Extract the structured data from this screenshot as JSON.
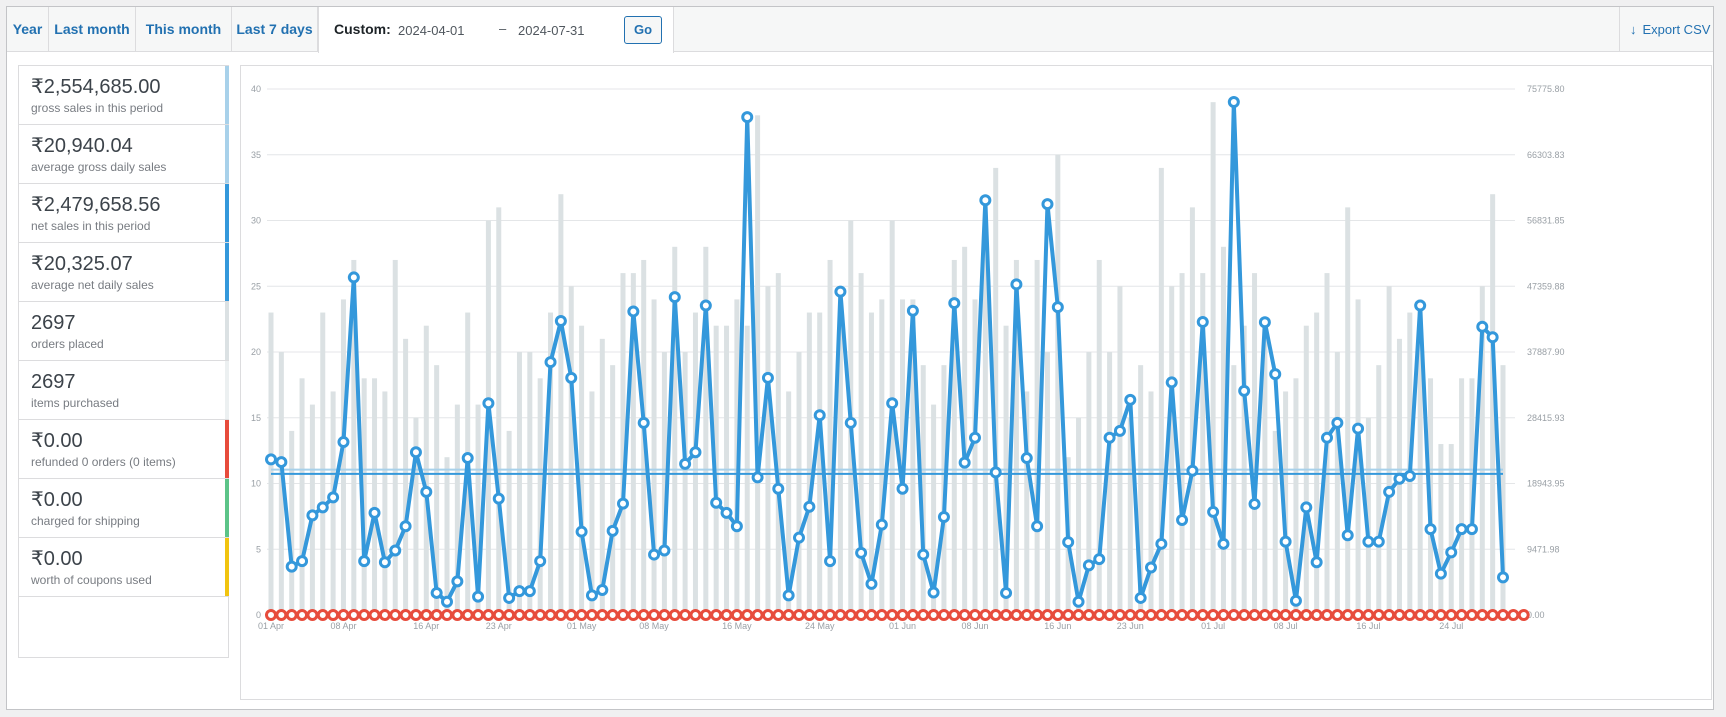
{
  "ranges": [
    {
      "label": "Year"
    },
    {
      "label": "Last month"
    },
    {
      "label": "This month"
    },
    {
      "label": "Last 7 days"
    }
  ],
  "custom": {
    "label": "Custom:",
    "start": "2024-04-01",
    "separator": "–",
    "end": "2024-07-31",
    "go_label": "Go"
  },
  "export": {
    "label": "Export CSV",
    "icon": "download-arrow-icon"
  },
  "legend": [
    {
      "value": "₹2,554,685.00",
      "label": "gross sales in this period",
      "color": "#a8d1ea"
    },
    {
      "value": "₹20,940.04",
      "label": "average gross daily sales",
      "color": "#a8d1ea"
    },
    {
      "value": "₹2,479,658.56",
      "label": "net sales in this period",
      "color": "#3498db"
    },
    {
      "value": "₹20,325.07",
      "label": "average net daily sales",
      "color": "#3498db"
    },
    {
      "value": "2697",
      "label": "orders placed",
      "color": "#dbe1e3"
    },
    {
      "value": "2697",
      "label": "items purchased",
      "color": "#ecf0f1"
    },
    {
      "value": "₹0.00",
      "label": "refunded 0 orders (0 items)",
      "color": "#e74c3c"
    },
    {
      "value": "₹0.00",
      "label": "charged for shipping",
      "color": "#5cc488"
    },
    {
      "value": "₹0.00",
      "label": "worth of coupons used",
      "color": "#f1c40f"
    }
  ],
  "chart_data": {
    "type": "bar+line",
    "x_tick_labels": [
      "01 Apr",
      "08 Apr",
      "16 Apr",
      "23 Apr",
      "01 May",
      "08 May",
      "16 May",
      "24 May",
      "01 Jun",
      "08 Jun",
      "16 Jun",
      "23 Jun",
      "01 Jul",
      "08 Jul",
      "16 Jul",
      "24 Jul"
    ],
    "left_axis": {
      "ticks": [
        "0",
        "5",
        "10",
        "15",
        "20",
        "25",
        "30",
        "35",
        "40"
      ],
      "ylim": [
        0,
        40
      ]
    },
    "right_axis": {
      "ticks": [
        "0.00",
        "9471.98",
        "18943.95",
        "28415.93",
        "37887.90",
        "47359.88",
        "56831.85",
        "66303.83",
        "75775.80"
      ],
      "ylim": [
        0,
        75775.8
      ]
    },
    "grid": true,
    "series": [
      {
        "kind": "bar",
        "axis": "left",
        "color": "#dbe1e3",
        "values": [
          23,
          20,
          14,
          18,
          16,
          23,
          17,
          24,
          27,
          18,
          18,
          17,
          27,
          21,
          15,
          22,
          19,
          12,
          16,
          23,
          16,
          30,
          31,
          14,
          20,
          20,
          18,
          23,
          32,
          25,
          22,
          17,
          21,
          19,
          26,
          26,
          27,
          24,
          20,
          28,
          20,
          23,
          28,
          22,
          22,
          24,
          22,
          38,
          25,
          26,
          17,
          20,
          23,
          23,
          27,
          23,
          30,
          26,
          23,
          24,
          30,
          24,
          24,
          19,
          16,
          19,
          27,
          28,
          24,
          29,
          34,
          22,
          27,
          17,
          27,
          20,
          35,
          12,
          15,
          20,
          27,
          20,
          25,
          15,
          19,
          17,
          34,
          25,
          26,
          31,
          26,
          39,
          28,
          19,
          22,
          26,
          22,
          14,
          17,
          18,
          22,
          23,
          26,
          20,
          31,
          24,
          15,
          19,
          25,
          21,
          23,
          24,
          18,
          13,
          13,
          18,
          18,
          25,
          32,
          19
        ]
      },
      {
        "kind": "line",
        "axis": "right",
        "color": "#3498db",
        "values": [
          22427,
          22032,
          6971,
          7767,
          14349,
          15507,
          16938,
          24914,
          48630,
          7767,
          14714,
          7596,
          9287,
          12793,
          23441,
          17735,
          3178,
          1915,
          4849,
          22609,
          2650,
          30512,
          16770,
          2457,
          3442,
          3442,
          7754,
          36427,
          42352,
          34164,
          12003,
          2820,
          3608,
          12123,
          16048,
          43731,
          27674,
          8706,
          9287,
          45796,
          21779,
          23441,
          44588,
          16164,
          14714,
          12793,
          71720,
          19829,
          34164,
          18183,
          2820,
          11138,
          15602,
          28780,
          7767,
          46581,
          27674,
          8952,
          4478,
          13025,
          30512,
          18183,
          43823,
          8706,
          3233,
          14121,
          44924,
          21952,
          25537,
          59750,
          20541,
          3178,
          47638,
          22609,
          12793,
          59193,
          44359,
          10495,
          1915,
          7154,
          8057,
          25537,
          26524,
          31000,
          2457,
          6840,
          10255,
          33516,
          13683,
          20782,
          42218,
          14862,
          10255,
          73909,
          32293,
          15999,
          42168,
          34699,
          10570,
          2055,
          15507,
          7596,
          25537,
          27674,
          11488,
          26855,
          10570,
          10570,
          17735,
          19632,
          20032,
          44588,
          12366,
          5953,
          9018,
          12366,
          12366,
          41526,
          40015,
          5416
        ]
      },
      {
        "kind": "line",
        "axis": "left",
        "color": "#e74c3c",
        "values": [
          0,
          0,
          0,
          0,
          0,
          0,
          0,
          0,
          0,
          0,
          0,
          0,
          0,
          0,
          0,
          0,
          0,
          0,
          0,
          0,
          0,
          0,
          0,
          0,
          0,
          0,
          0,
          0,
          0,
          0,
          0,
          0,
          0,
          0,
          0,
          0,
          0,
          0,
          0,
          0,
          0,
          0,
          0,
          0,
          0,
          0,
          0,
          0,
          0,
          0,
          0,
          0,
          0,
          0,
          0,
          0,
          0,
          0,
          0,
          0,
          0,
          0,
          0,
          0,
          0,
          0,
          0,
          0,
          0,
          0,
          0,
          0,
          0,
          0,
          0,
          0,
          0,
          0,
          0,
          0,
          0,
          0,
          0,
          0,
          0,
          0,
          0,
          0,
          0,
          0,
          0,
          0,
          0,
          0,
          0,
          0,
          0,
          0,
          0,
          0,
          0,
          0,
          0,
          0,
          0,
          0,
          0,
          0,
          0,
          0,
          0,
          0,
          0,
          0,
          0,
          0,
          0,
          0,
          0,
          0,
          0,
          0
        ]
      },
      {
        "kind": "average",
        "axis": "right",
        "color": "#a8d1ea",
        "values": [
          20940.04
        ]
      },
      {
        "kind": "average",
        "axis": "right",
        "color": "#3498db",
        "values": [
          20325.07
        ]
      }
    ]
  }
}
